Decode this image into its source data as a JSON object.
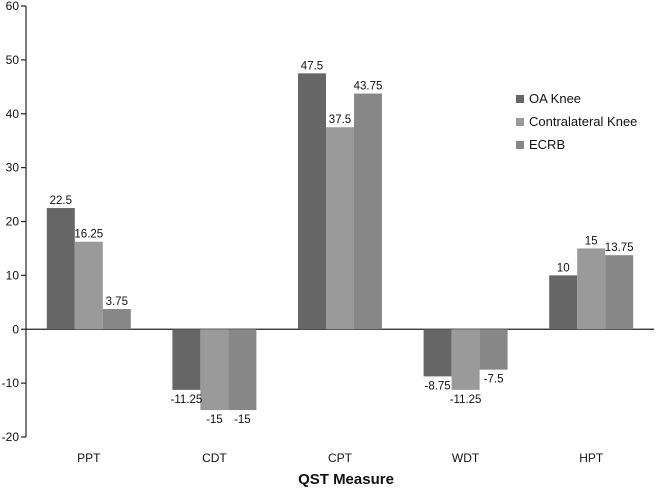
{
  "chart_data": {
    "type": "bar",
    "title": "",
    "xlabel": "QST Measure",
    "ylabel": "",
    "ylim": [
      -20,
      60
    ],
    "yticks": [
      -20,
      -10,
      0,
      10,
      20,
      30,
      40,
      50,
      60
    ],
    "grid": false,
    "legend_position": "right",
    "categories": [
      "PPT",
      "CDT",
      "CPT",
      "WDT",
      "HPT"
    ],
    "series": [
      {
        "name": "OA Knee",
        "color": "#666666",
        "values": [
          22.5,
          -11.25,
          47.5,
          -8.75,
          10
        ]
      },
      {
        "name": "Contralateral Knee",
        "color": "#9a9a9a",
        "values": [
          16.25,
          -15,
          37.5,
          -11.25,
          15
        ]
      },
      {
        "name": "ECRB",
        "color": "#878787",
        "values": [
          3.75,
          -15,
          43.75,
          -7.5,
          13.75
        ]
      }
    ],
    "data_labels": [
      [
        "22.5",
        "16.25",
        "3.75"
      ],
      [
        "-11.25",
        "-15",
        "-15"
      ],
      [
        "47.5",
        "37.5",
        "43.75"
      ],
      [
        "-8.75",
        "-11.25",
        "-7.5"
      ],
      [
        "10",
        "15",
        "13.75"
      ]
    ]
  }
}
